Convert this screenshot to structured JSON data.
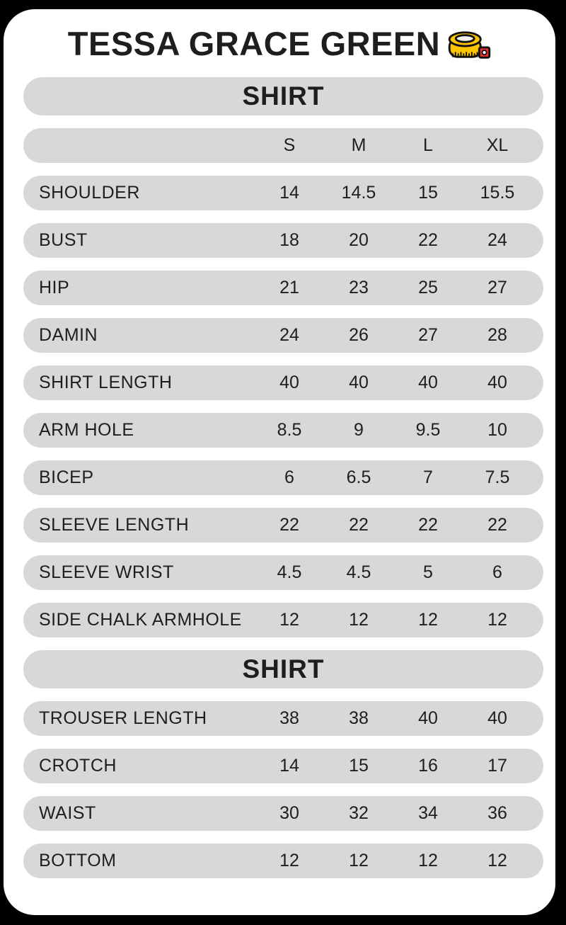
{
  "title": "TESSA GRACE GREEN",
  "title_icon": "measuring-tape-icon",
  "chart_data": [
    {
      "type": "table",
      "section_header": "SHIRT",
      "columns": [
        "S",
        "M",
        "L",
        "XL"
      ],
      "rows": [
        [
          "SHOULDER",
          "14",
          "14.5",
          "15",
          "15.5"
        ],
        [
          "BUST",
          "18",
          "20",
          "22",
          "24"
        ],
        [
          "HIP",
          "21",
          "23",
          "25",
          "27"
        ],
        [
          "DAMIN",
          "24",
          "26",
          "27",
          "28"
        ],
        [
          "SHIRT LENGTH",
          "40",
          "40",
          "40",
          "40"
        ],
        [
          "ARM HOLE",
          "8.5",
          "9",
          "9.5",
          "10"
        ],
        [
          "BICEP",
          "6",
          "6.5",
          "7",
          "7.5"
        ],
        [
          "SLEEVE LENGTH",
          "22",
          "22",
          "22",
          "22"
        ],
        [
          "SLEEVE WRIST",
          "4.5",
          "4.5",
          "5",
          "6"
        ],
        [
          "SIDE CHALK ARMHOLE",
          "12",
          "12",
          "12",
          "12"
        ]
      ]
    },
    {
      "type": "table",
      "section_header": "SHIRT",
      "columns": [],
      "rows": [
        [
          "TROUSER LENGTH",
          "38",
          "38",
          "40",
          "40"
        ],
        [
          "CROTCH",
          "14",
          "15",
          "16",
          "17"
        ],
        [
          "WAIST",
          "30",
          "32",
          "34",
          "36"
        ],
        [
          "BOTTOM",
          "12",
          "12",
          "12",
          "12"
        ]
      ]
    }
  ],
  "colors": {
    "background": "#000000",
    "card": "#ffffff",
    "pill": "#d8d8d8",
    "text": "#1e1e1e",
    "tape_yellow": "#fdc500",
    "tape_red": "#e8312a",
    "tape_spool": "#efefef",
    "tape_outline": "#111111"
  }
}
